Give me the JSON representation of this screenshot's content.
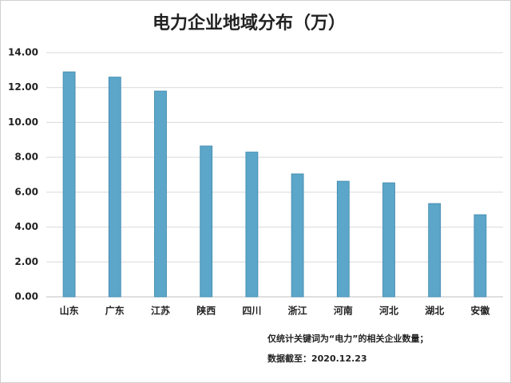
{
  "chart_data": {
    "type": "bar",
    "title": "电力企业地域分布（万）",
    "categories": [
      "山东",
      "广东",
      "江苏",
      "陕西",
      "四川",
      "浙江",
      "河南",
      "河北",
      "湖北",
      "安徽"
    ],
    "values": [
      12.9,
      12.6,
      11.8,
      8.65,
      8.3,
      7.05,
      6.63,
      6.54,
      5.35,
      4.71
    ],
    "color": "#5ba6c9",
    "ylim": [
      0,
      14
    ],
    "yticks": [
      {
        "value": 0,
        "label": "0.00"
      },
      {
        "value": 2,
        "label": "2.00"
      },
      {
        "value": 4,
        "label": "4.00"
      },
      {
        "value": 6,
        "label": "6.00"
      },
      {
        "value": 8,
        "label": "8.00"
      },
      {
        "value": 10,
        "label": "10.00"
      },
      {
        "value": 12,
        "label": "12.00"
      },
      {
        "value": 14,
        "label": "14.00"
      }
    ],
    "grid": true,
    "notes": [
      "仅统计关键词为“电力”的相关企业数量；",
      "数据截至：2020.12.23"
    ]
  }
}
